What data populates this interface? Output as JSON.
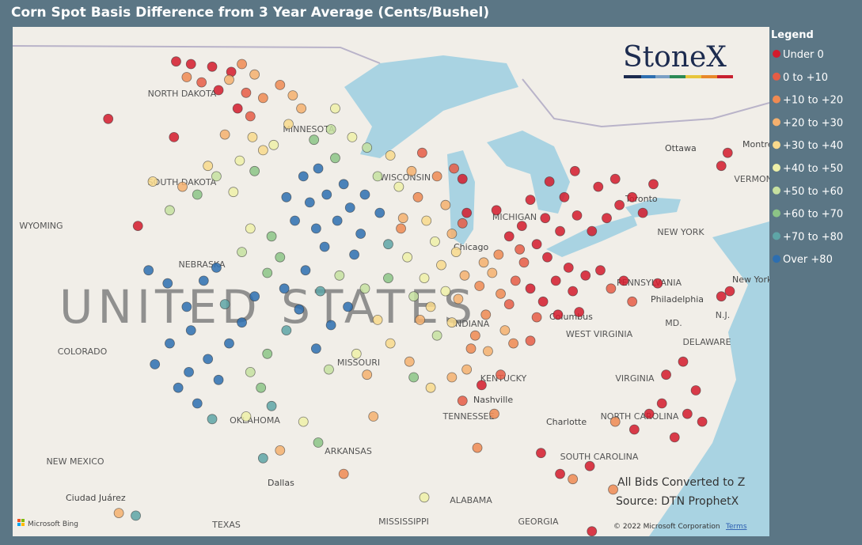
{
  "title": "Corn Spot Basis Difference from 3 Year Average (Cents/Bushel)",
  "legend": {
    "title": "Legend",
    "items": [
      {
        "label": "Under 0",
        "color": "#d41a2c"
      },
      {
        "label": "0 to +10",
        "color": "#e65c45"
      },
      {
        "label": "+10 to +20",
        "color": "#ef8a52"
      },
      {
        "label": "+20 to +30",
        "color": "#f5b06e"
      },
      {
        "label": "+30 to +40",
        "color": "#f8d98c"
      },
      {
        "label": "+40 to +50",
        "color": "#eef0a8"
      },
      {
        "label": "+50 to +60",
        "color": "#c6e0a0"
      },
      {
        "label": "+60 to +70",
        "color": "#8cc486"
      },
      {
        "label": "+70 to +80",
        "color": "#5ea5a6"
      },
      {
        "label": "Over +80",
        "color": "#2d6eb0"
      }
    ]
  },
  "logo": "StoneX",
  "notes": [
    "All Bids Converted to Z",
    "Source: DTN ProphetX"
  ],
  "attribution": {
    "provider": "Microsoft Bing",
    "copyright": "© 2022 Microsoft Corporation",
    "terms": "Terms"
  },
  "country_label": "UNITED STATES",
  "places": [
    "NORTH DAKOTA",
    "SOUTH DAKOTA",
    "MINNESOTA",
    "WYOMING",
    "NEBRASKA",
    "COLORADO",
    "MISSOURI",
    "OKLAHOMA",
    "NEW MEXICO",
    "TEXAS",
    "ARKANSAS",
    "MISSISSIPPI",
    "ALABAMA",
    "GEORGIA",
    "TENNESSEE",
    "KENTUCKY",
    "WEST VIRGINIA",
    "VIRGINIA",
    "NORTH CAROLINA",
    "SOUTH CAROLINA",
    "PENNSYLVANIA",
    "NEW YORK",
    "DELAWARE",
    "MD.",
    "N.J.",
    "Chicago",
    "Columbus",
    "Nashville",
    "Charlotte",
    "Dallas",
    "Ottawa",
    "Montreal",
    "Toronto",
    "Philadelphia",
    "New York",
    "Ciudad Juárez",
    "WISCONSIN",
    "INDIANA",
    "MICHIGAN",
    "VERMONT"
  ],
  "points": [
    [
      -101.5,
      49.0,
      0
    ],
    [
      -100.8,
      48.9,
      0
    ],
    [
      -99.8,
      48.8,
      0
    ],
    [
      -98.9,
      48.6,
      0
    ],
    [
      -100.3,
      48.2,
      1
    ],
    [
      -99.5,
      47.9,
      0
    ],
    [
      -98.6,
      47.2,
      0
    ],
    [
      -98.0,
      46.9,
      1
    ],
    [
      -101.0,
      48.4,
      2
    ],
    [
      -99.0,
      48.3,
      3
    ],
    [
      -98.4,
      48.9,
      2
    ],
    [
      -97.8,
      48.5,
      3
    ],
    [
      -97.4,
      47.6,
      2
    ],
    [
      -98.2,
      47.8,
      1
    ],
    [
      -101.6,
      46.1,
      0
    ],
    [
      -104.7,
      46.8,
      0
    ],
    [
      -99.2,
      46.2,
      3
    ],
    [
      -97.9,
      46.1,
      4
    ],
    [
      -97.4,
      45.6,
      4
    ],
    [
      -98.5,
      45.2,
      5
    ],
    [
      -100.0,
      45.0,
      4
    ],
    [
      -101.2,
      44.2,
      3
    ],
    [
      -102.6,
      44.4,
      4
    ],
    [
      -101.8,
      43.3,
      6
    ],
    [
      -100.5,
      43.9,
      7
    ],
    [
      -99.6,
      44.6,
      6
    ],
    [
      -98.8,
      44.0,
      5
    ],
    [
      -97.8,
      44.8,
      7
    ],
    [
      -96.9,
      45.8,
      5
    ],
    [
      -96.2,
      46.6,
      4
    ],
    [
      -95.6,
      47.2,
      3
    ],
    [
      -96.6,
      48.1,
      2
    ],
    [
      -96.0,
      47.7,
      3
    ],
    [
      -103.3,
      42.7,
      0
    ],
    [
      -95.5,
      44.6,
      9
    ],
    [
      -94.8,
      44.9,
      9
    ],
    [
      -94.0,
      45.3,
      7
    ],
    [
      -93.6,
      44.3,
      9
    ],
    [
      -94.4,
      43.9,
      9
    ],
    [
      -95.2,
      43.6,
      9
    ],
    [
      -93.3,
      43.4,
      9
    ],
    [
      -92.6,
      43.9,
      9
    ],
    [
      -93.9,
      42.9,
      9
    ],
    [
      -94.9,
      42.6,
      9
    ],
    [
      -92.8,
      42.4,
      9
    ],
    [
      -91.9,
      43.2,
      9
    ],
    [
      -95.9,
      42.9,
      9
    ],
    [
      -96.3,
      43.8,
      9
    ],
    [
      -93.1,
      41.6,
      9
    ],
    [
      -94.5,
      41.9,
      9
    ],
    [
      -91.5,
      42.0,
      8
    ],
    [
      -92.0,
      44.6,
      6
    ],
    [
      -91.0,
      44.2,
      5
    ],
    [
      -90.8,
      43.0,
      3
    ],
    [
      -90.1,
      43.8,
      2
    ],
    [
      -89.2,
      44.6,
      2
    ],
    [
      -88.4,
      44.9,
      1
    ],
    [
      -88.0,
      44.5,
      0
    ],
    [
      -87.8,
      43.2,
      0
    ],
    [
      -88.8,
      43.5,
      3
    ],
    [
      -89.7,
      42.9,
      4
    ],
    [
      -90.4,
      44.8,
      3
    ],
    [
      -89.9,
      45.5,
      1
    ],
    [
      -91.4,
      45.4,
      4
    ],
    [
      -92.5,
      45.7,
      6
    ],
    [
      -93.2,
      46.1,
      5
    ],
    [
      -94.2,
      46.4,
      6
    ],
    [
      -95.0,
      46.0,
      7
    ],
    [
      -94.0,
      47.2,
      5
    ],
    [
      -101.9,
      40.5,
      9
    ],
    [
      -102.8,
      41.0,
      9
    ],
    [
      -101.0,
      39.6,
      9
    ],
    [
      -100.2,
      40.6,
      9
    ],
    [
      -99.6,
      41.1,
      9
    ],
    [
      -100.8,
      38.7,
      9
    ],
    [
      -101.8,
      38.2,
      9
    ],
    [
      -100.0,
      37.6,
      9
    ],
    [
      -99.0,
      38.2,
      9
    ],
    [
      -98.4,
      39.0,
      9
    ],
    [
      -99.2,
      39.7,
      8
    ],
    [
      -97.8,
      40.0,
      9
    ],
    [
      -97.2,
      40.9,
      7
    ],
    [
      -96.6,
      41.5,
      7
    ],
    [
      -98.4,
      41.7,
      6
    ],
    [
      -97.0,
      42.3,
      7
    ],
    [
      -98.0,
      42.6,
      5
    ],
    [
      -96.4,
      40.3,
      9
    ],
    [
      -95.7,
      39.5,
      9
    ],
    [
      -96.3,
      38.7,
      8
    ],
    [
      -97.2,
      37.8,
      7
    ],
    [
      -98.0,
      37.1,
      6
    ],
    [
      -97.5,
      36.5,
      7
    ],
    [
      -99.5,
      36.8,
      9
    ],
    [
      -100.9,
      37.1,
      9
    ],
    [
      -102.5,
      37.4,
      9
    ],
    [
      -101.4,
      36.5,
      9
    ],
    [
      -100.5,
      35.9,
      9
    ],
    [
      -99.8,
      35.3,
      8
    ],
    [
      -98.2,
      35.4,
      5
    ],
    [
      -97.0,
      35.8,
      8
    ],
    [
      -94.9,
      38.0,
      9
    ],
    [
      -94.2,
      38.9,
      9
    ],
    [
      -93.4,
      39.6,
      9
    ],
    [
      -94.7,
      40.2,
      8
    ],
    [
      -95.4,
      41.0,
      9
    ],
    [
      -93.8,
      40.8,
      6
    ],
    [
      -92.6,
      40.3,
      6
    ],
    [
      -92.0,
      39.1,
      4
    ],
    [
      -93.0,
      37.8,
      5
    ],
    [
      -94.3,
      37.2,
      6
    ],
    [
      -92.5,
      37.0,
      3
    ],
    [
      -91.4,
      38.2,
      4
    ],
    [
      -90.5,
      37.5,
      3
    ],
    [
      -91.5,
      40.7,
      7
    ],
    [
      -90.6,
      41.5,
      5
    ],
    [
      -89.8,
      40.7,
      5
    ],
    [
      -89.0,
      41.2,
      4
    ],
    [
      -88.3,
      41.7,
      4
    ],
    [
      -88.8,
      40.2,
      5
    ],
    [
      -89.5,
      39.6,
      4
    ],
    [
      -88.2,
      39.9,
      3
    ],
    [
      -88.5,
      39.0,
      4
    ],
    [
      -89.2,
      38.5,
      6
    ],
    [
      -90.0,
      39.1,
      3
    ],
    [
      -87.9,
      40.8,
      3
    ],
    [
      -89.3,
      42.1,
      5
    ],
    [
      -88.5,
      42.4,
      3
    ],
    [
      -90.3,
      40.0,
      6
    ],
    [
      -87.2,
      40.4,
      2
    ],
    [
      -86.6,
      40.9,
      3
    ],
    [
      -86.2,
      40.1,
      2
    ],
    [
      -85.8,
      39.7,
      1
    ],
    [
      -86.9,
      39.3,
      2
    ],
    [
      -86.0,
      38.7,
      3
    ],
    [
      -87.4,
      38.5,
      2
    ],
    [
      -85.5,
      40.6,
      1
    ],
    [
      -85.1,
      41.3,
      1
    ],
    [
      -86.3,
      41.6,
      2
    ],
    [
      -87.0,
      41.3,
      3
    ],
    [
      -87.6,
      38.0,
      2
    ],
    [
      -86.8,
      37.9,
      3
    ],
    [
      -87.8,
      37.2,
      3
    ],
    [
      -84.8,
      40.3,
      0
    ],
    [
      -84.2,
      39.8,
      0
    ],
    [
      -83.6,
      40.6,
      0
    ],
    [
      -83.0,
      41.1,
      0
    ],
    [
      -84.0,
      41.5,
      0
    ],
    [
      -84.5,
      42.0,
      0
    ],
    [
      -85.2,
      42.7,
      0
    ],
    [
      -84.1,
      43.0,
      0
    ],
    [
      -83.4,
      42.5,
      0
    ],
    [
      -82.8,
      40.2,
      0
    ],
    [
      -82.2,
      40.8,
      0
    ],
    [
      -81.5,
      41.0,
      0
    ],
    [
      -81.0,
      40.3,
      1
    ],
    [
      -82.5,
      39.4,
      0
    ],
    [
      -83.5,
      39.3,
      0
    ],
    [
      -84.5,
      39.2,
      1
    ],
    [
      -85.3,
      41.8,
      1
    ],
    [
      -85.8,
      42.3,
      0
    ],
    [
      -86.4,
      43.3,
      0
    ],
    [
      -84.8,
      43.7,
      0
    ],
    [
      -83.2,
      43.8,
      0
    ],
    [
      -82.6,
      43.1,
      0
    ],
    [
      -81.9,
      42.5,
      0
    ],
    [
      -81.2,
      43.0,
      0
    ],
    [
      -80.6,
      43.5,
      0
    ],
    [
      -80.0,
      43.8,
      0
    ],
    [
      -79.5,
      43.2,
      0
    ],
    [
      -81.6,
      44.2,
      0
    ],
    [
      -80.8,
      44.5,
      0
    ],
    [
      -79.0,
      44.3,
      0
    ],
    [
      -82.7,
      44.8,
      0
    ],
    [
      -83.9,
      44.4,
      0
    ],
    [
      -80.4,
      40.6,
      0
    ],
    [
      -78.8,
      40.5,
      0
    ],
    [
      -80.0,
      39.8,
      1
    ],
    [
      -75.8,
      40.0,
      0
    ],
    [
      -75.4,
      40.2,
      0
    ],
    [
      -75.8,
      45.0,
      0
    ],
    [
      -75.5,
      45.5,
      0
    ],
    [
      -84.8,
      38.3,
      1
    ],
    [
      -85.6,
      38.2,
      2
    ],
    [
      -86.2,
      37.0,
      1
    ],
    [
      -87.1,
      36.6,
      0
    ],
    [
      -88.5,
      36.9,
      3
    ],
    [
      -88.0,
      36.0,
      1
    ],
    [
      -86.5,
      35.5,
      2
    ],
    [
      -89.5,
      36.5,
      4
    ],
    [
      -90.3,
      36.9,
      7
    ],
    [
      -92.2,
      35.4,
      3
    ],
    [
      -93.6,
      33.2,
      2
    ],
    [
      -95.5,
      35.2,
      5
    ],
    [
      -94.8,
      34.4,
      7
    ],
    [
      -96.6,
      34.1,
      3
    ],
    [
      -97.4,
      33.8,
      8
    ],
    [
      -104.2,
      31.7,
      3
    ],
    [
      -103.4,
      31.6,
      8
    ],
    [
      -89.8,
      32.3,
      5
    ],
    [
      -87.3,
      34.2,
      2
    ],
    [
      -84.3,
      34.0,
      0
    ],
    [
      -83.4,
      33.2,
      0
    ],
    [
      -82.0,
      33.5,
      0
    ],
    [
      -80.8,
      35.2,
      2
    ],
    [
      -79.9,
      34.9,
      0
    ],
    [
      -79.2,
      35.5,
      0
    ],
    [
      -78.6,
      35.9,
      0
    ],
    [
      -77.4,
      35.5,
      0
    ],
    [
      -77.0,
      36.4,
      0
    ],
    [
      -76.7,
      35.2,
      0
    ],
    [
      -78.0,
      34.6,
      0
    ],
    [
      -81.9,
      31.0,
      0
    ],
    [
      -80.9,
      32.6,
      2
    ],
    [
      -77.6,
      37.5,
      0
    ],
    [
      -78.4,
      37.0,
      0
    ],
    [
      -82.8,
      33.0,
      2
    ],
    [
      -90.9,
      42.6,
      2
    ],
    [
      -88.0,
      42.8,
      1
    ]
  ]
}
